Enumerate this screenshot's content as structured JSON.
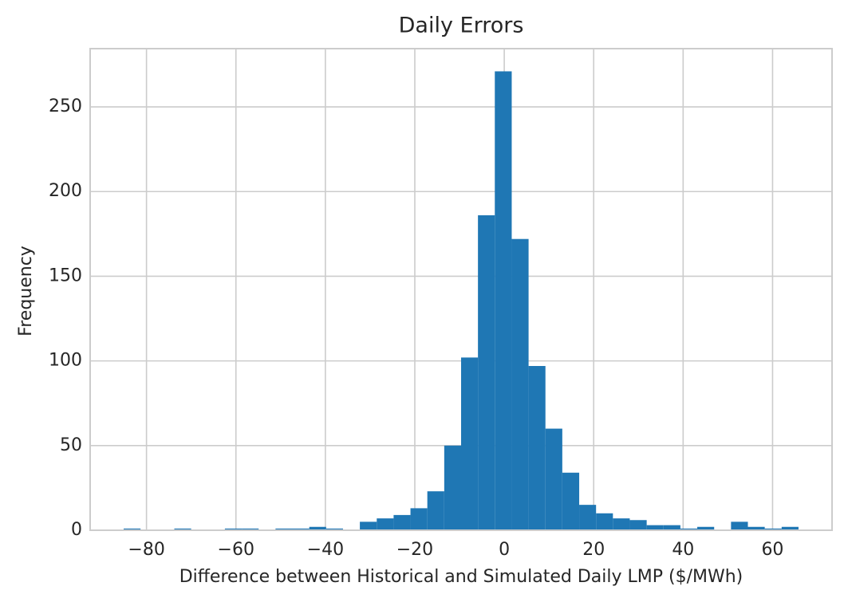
{
  "chart_data": {
    "type": "histogram",
    "title": "Daily Errors",
    "x_label": "Difference between Historical and Simulated Daily LMP ($/MWh)",
    "y_label": "Frequency",
    "bins": [
      -85.1,
      -81.33,
      -77.56,
      -73.78,
      -70.01,
      -66.24,
      -62.47,
      -58.69,
      -54.92,
      -51.15,
      -47.38,
      -43.6,
      -39.83,
      -36.06,
      -32.29,
      -28.51,
      -24.74,
      -20.97,
      -17.2,
      -13.42,
      -9.65,
      -5.88,
      -2.11,
      1.67,
      5.44,
      9.21,
      12.98,
      16.76,
      20.53,
      24.3,
      28.07,
      31.85,
      35.62,
      39.39,
      43.16,
      46.94,
      50.71,
      54.48,
      58.25,
      62.03,
      65.8
    ],
    "values": [
      1,
      0,
      0,
      1,
      0,
      0,
      1,
      1,
      0,
      1,
      1,
      2,
      1,
      0,
      5,
      7,
      9,
      13,
      23,
      50,
      102,
      186,
      271,
      172,
      97,
      60,
      34,
      15,
      10,
      7,
      6,
      3,
      3,
      1,
      2,
      0,
      5,
      2,
      1,
      2
    ],
    "color": "#1f77b4",
    "xlim": [
      -92.6,
      73.3
    ],
    "ylim": [
      0,
      284.4
    ],
    "xticks": [
      {
        "value": -80,
        "label": "−80"
      },
      {
        "value": -60,
        "label": "−60"
      },
      {
        "value": -40,
        "label": "−40"
      },
      {
        "value": -20,
        "label": "−20"
      },
      0,
      20,
      40,
      60
    ],
    "yticks": [
      0,
      50,
      100,
      150,
      200,
      250
    ],
    "grid": true
  }
}
